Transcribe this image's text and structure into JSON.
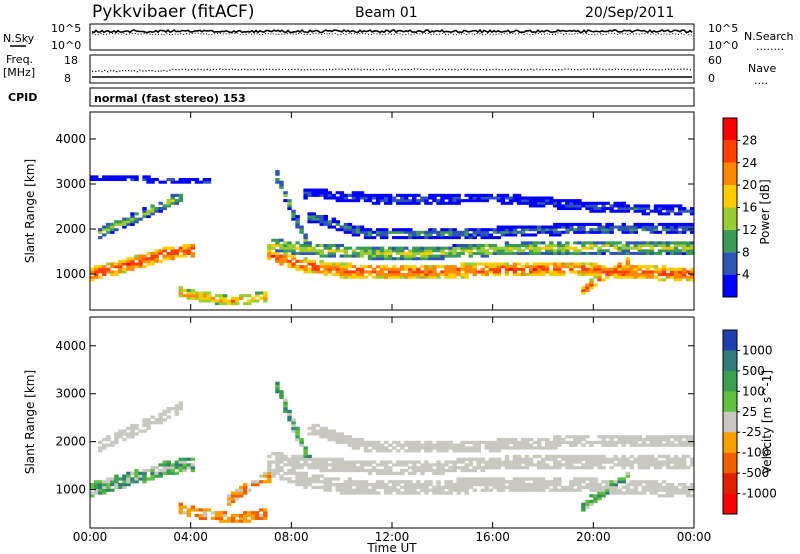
{
  "header": {
    "title": "Pykkvibaer (fitACF)",
    "beam": "Beam 01",
    "date": "20/Sep/2011"
  },
  "noise_panel": {
    "left_label": "N.Sky",
    "left_ticks": [
      "10^5",
      "10^0"
    ],
    "right_ticks": [
      "10^5",
      "10^0"
    ],
    "right_label": "N.Search",
    "right_legend": "........"
  },
  "freq_panel": {
    "left_label_1": "Freq.",
    "left_label_2": "[MHz]",
    "left_ticks": [
      "18",
      "8"
    ],
    "right_ticks": [
      "60",
      "0"
    ],
    "right_label": "Nave",
    "right_legend": "...."
  },
  "cpid": {
    "label": "CPID",
    "text": "normal (fast stereo) 153"
  },
  "chart_data": [
    {
      "type": "heatmap",
      "name": "power",
      "ylabel": "Slant Range [km]",
      "y_ticks": [
        1000,
        2000,
        3000,
        4000
      ],
      "ylim": [
        200,
        4600
      ],
      "colorbar_label": "Power [dB]",
      "colorbar_ticks": [
        4,
        8,
        12,
        16,
        20,
        24,
        28
      ],
      "colorbar_range": [
        0,
        32
      ],
      "colorbar_colors": [
        "#0000ff",
        "#2f55b4",
        "#3a9a5a",
        "#9acd32",
        "#ffcc00",
        "#ff8800",
        "#ff4000",
        "#ff0000"
      ],
      "bands": [
        {
          "x": [
            0.0,
            1.5,
            3.0,
            4.2
          ],
          "y": [
            1000,
            1200,
            1450,
            1550
          ],
          "w": 150,
          "v": 27
        },
        {
          "x": [
            0.3,
            2.0,
            3.7
          ],
          "y": [
            1900,
            2300,
            2750
          ],
          "w": 120,
          "v": 14
        },
        {
          "x": [
            7.0,
            8.5,
            10,
            13,
            16,
            19,
            21,
            24
          ],
          "y": [
            1450,
            1200,
            1080,
            1050,
            1100,
            1120,
            1050,
            1000
          ],
          "w": 150,
          "v": 26
        },
        {
          "x": [
            7.0,
            10,
            13,
            16,
            20,
            24
          ],
          "y": [
            1650,
            1500,
            1450,
            1550,
            1600,
            1600
          ],
          "w": 140,
          "v": 16
        },
        {
          "x": [
            7.4,
            8.2,
            8.8
          ],
          "y": [
            3200,
            2200,
            1500
          ],
          "w": 130,
          "v": 12
        },
        {
          "x": [
            8.6,
            11,
            15,
            19,
            24
          ],
          "y": [
            2300,
            1900,
            1900,
            2000,
            2000
          ],
          "w": 120,
          "v": 9
        },
        {
          "x": [
            8.5,
            12,
            16,
            20,
            24
          ],
          "y": [
            2800,
            2650,
            2700,
            2500,
            2400
          ],
          "w": 110,
          "v": 6
        },
        {
          "x": [
            3.5,
            5.5,
            7.0
          ],
          "y": [
            600,
            400,
            500
          ],
          "w": 110,
          "v": 22
        },
        {
          "x": [
            19.5,
            20.5,
            21.5
          ],
          "y": [
            600,
            1000,
            1300
          ],
          "w": 110,
          "v": 26
        },
        {
          "x": [
            0.0,
            5.0
          ],
          "y": [
            3150,
            3050
          ],
          "w": 60,
          "v": 5
        }
      ]
    },
    {
      "type": "heatmap",
      "name": "velocity",
      "ylabel": "Slant Range [km]",
      "xlabel": "Time UT",
      "x_ticks": [
        "00:00",
        "04:00",
        "08:00",
        "12:00",
        "16:00",
        "20:00",
        "00:00"
      ],
      "x_range_hours": [
        0,
        24
      ],
      "y_ticks": [
        1000,
        2000,
        3000,
        4000
      ],
      "ylim": [
        200,
        4600
      ],
      "colorbar_label": "Velocity [m s^-1]",
      "colorbar_ticks": [
        "1000",
        "500",
        "100",
        "25",
        "-25",
        "-100",
        "-500",
        "-1000"
      ],
      "colorbar_colors": [
        "#2040b0",
        "#2f7d78",
        "#3aa050",
        "#60c040",
        "#c8c8c0",
        "#f7a000",
        "#f06000",
        "#e02000",
        "#ff0000"
      ],
      "bands": [
        {
          "x": [
            0.0,
            1.5,
            3.0,
            4.2
          ],
          "y": [
            1000,
            1200,
            1450,
            1550
          ],
          "w": 150,
          "v": "flow-green"
        },
        {
          "x": [
            0.3,
            2.0,
            3.7
          ],
          "y": [
            1900,
            2300,
            2750
          ],
          "w": 120,
          "v": "ground"
        },
        {
          "x": [
            7.0,
            8.5,
            10,
            13,
            16,
            19,
            21,
            24
          ],
          "y": [
            1450,
            1200,
            1080,
            1050,
            1100,
            1120,
            1050,
            1000
          ],
          "w": 150,
          "v": "ground"
        },
        {
          "x": [
            7.0,
            10,
            13,
            16,
            20,
            24
          ],
          "y": [
            1650,
            1500,
            1450,
            1550,
            1600,
            1600
          ],
          "w": 140,
          "v": "ground"
        },
        {
          "x": [
            7.4,
            8.2,
            8.8
          ],
          "y": [
            3200,
            2200,
            1500
          ],
          "w": 130,
          "v": "flow-green"
        },
        {
          "x": [
            8.6,
            11,
            15,
            19,
            24
          ],
          "y": [
            2300,
            1900,
            1900,
            2000,
            2000
          ],
          "w": 120,
          "v": "ground"
        },
        {
          "x": [
            3.5,
            5.5,
            7.0
          ],
          "y": [
            600,
            400,
            500
          ],
          "w": 110,
          "v": "flow-orange"
        },
        {
          "x": [
            19.5,
            20.5,
            21.5
          ],
          "y": [
            600,
            1000,
            1300
          ],
          "w": 110,
          "v": "flow-green"
        },
        {
          "x": [
            5.5,
            6.5,
            7.2
          ],
          "y": [
            800,
            1100,
            1300
          ],
          "w": 120,
          "v": "flow-orange"
        }
      ]
    }
  ]
}
